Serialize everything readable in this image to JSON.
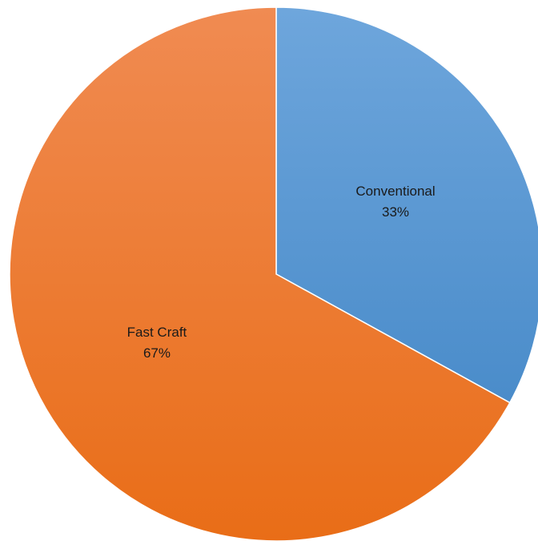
{
  "chart_data": {
    "type": "pie",
    "title": "",
    "legend": "none",
    "slices": [
      {
        "label": "Conventional",
        "value": 33,
        "percent_label": "33%",
        "color": "#5b9bd5"
      },
      {
        "label": "Fast Craft",
        "value": 67,
        "percent_label": "67%",
        "color": "#ed7d31"
      }
    ]
  }
}
